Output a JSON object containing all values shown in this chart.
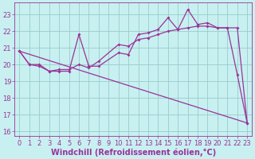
{
  "background_color": "#c8f0f0",
  "line_color": "#993399",
  "grid_color": "#99cccc",
  "xlabel": "Windchill (Refroidissement éolien,°C)",
  "xlabel_fontsize": 7,
  "tick_fontsize": 6,
  "xlim": [
    -0.5,
    23.5
  ],
  "ylim": [
    15.7,
    23.7
  ],
  "yticks": [
    16,
    17,
    18,
    19,
    20,
    21,
    22,
    23
  ],
  "xticks": [
    0,
    1,
    2,
    3,
    4,
    5,
    6,
    7,
    8,
    9,
    10,
    11,
    12,
    13,
    14,
    15,
    16,
    17,
    18,
    19,
    20,
    21,
    22,
    23
  ],
  "series1_x": [
    0,
    1,
    2,
    3,
    4,
    5,
    6,
    7,
    8,
    10,
    11,
    12,
    13,
    14,
    15,
    16,
    17,
    18,
    19,
    20,
    21,
    22,
    23
  ],
  "series1_y": [
    20.8,
    20.0,
    19.9,
    19.6,
    19.6,
    19.6,
    21.8,
    19.9,
    19.9,
    20.7,
    20.6,
    21.8,
    21.9,
    22.1,
    22.8,
    22.1,
    23.3,
    22.4,
    22.5,
    22.2,
    22.2,
    19.4,
    16.5
  ],
  "series2_x": [
    0,
    1,
    2,
    3,
    4,
    5,
    6,
    7,
    8,
    10,
    11,
    12,
    13,
    14,
    15,
    16,
    17,
    18,
    19,
    20,
    21,
    22,
    23
  ],
  "series2_y": [
    20.8,
    20.0,
    20.0,
    19.6,
    19.7,
    19.7,
    20.0,
    19.8,
    20.2,
    21.2,
    21.1,
    21.5,
    21.6,
    21.8,
    22.0,
    22.1,
    22.2,
    22.3,
    22.3,
    22.2,
    22.2,
    22.2,
    16.5
  ],
  "series3_x": [
    0,
    23
  ],
  "series3_y": [
    20.8,
    16.5
  ]
}
